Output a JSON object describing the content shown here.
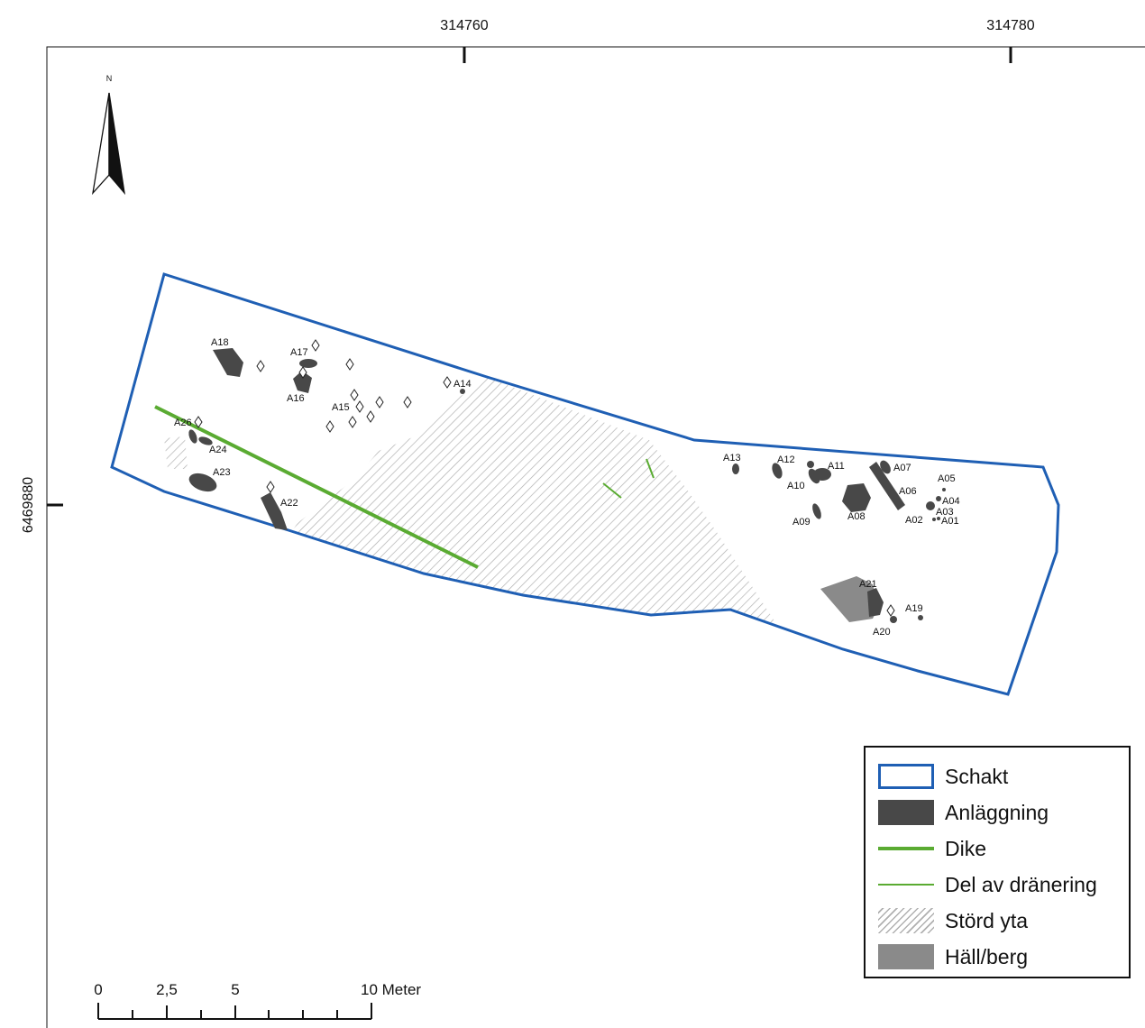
{
  "coordinates": {
    "x_ticks": [
      "314760",
      "314780"
    ],
    "y_tick": "6469880"
  },
  "north_arrow": {
    "label": "N"
  },
  "features": [
    {
      "id": "a18",
      "label": "A18"
    },
    {
      "id": "a17",
      "label": "A17"
    },
    {
      "id": "a16",
      "label": "A16"
    },
    {
      "id": "a15",
      "label": "A15"
    },
    {
      "id": "a14",
      "label": "A14"
    },
    {
      "id": "a26",
      "label": "A26"
    },
    {
      "id": "a24",
      "label": "A24"
    },
    {
      "id": "a23",
      "label": "A23"
    },
    {
      "id": "a22",
      "label": "A22"
    },
    {
      "id": "a13",
      "label": "A13"
    },
    {
      "id": "a12",
      "label": "A12"
    },
    {
      "id": "a11",
      "label": "A11"
    },
    {
      "id": "a10",
      "label": "A10"
    },
    {
      "id": "a09",
      "label": "A09"
    },
    {
      "id": "a08",
      "label": "A08"
    },
    {
      "id": "a07",
      "label": "A07"
    },
    {
      "id": "a06",
      "label": "A06"
    },
    {
      "id": "a05",
      "label": "A05"
    },
    {
      "id": "a04",
      "label": "A04"
    },
    {
      "id": "a03",
      "label": "A03"
    },
    {
      "id": "a02",
      "label": "A02"
    },
    {
      "id": "a01",
      "label": "A01"
    },
    {
      "id": "a21",
      "label": "A21"
    },
    {
      "id": "a20",
      "label": "A20"
    },
    {
      "id": "a19",
      "label": "A19"
    }
  ],
  "scale_bar": {
    "labels": [
      "0",
      "2,5",
      "5",
      "10 Meter"
    ]
  },
  "legend": {
    "items": [
      {
        "label": "Schakt",
        "swatch": "outline",
        "color": "#1f5fb4"
      },
      {
        "label": "Anläggning",
        "swatch": "fill",
        "color": "#484848"
      },
      {
        "label": "Dike",
        "swatch": "thick-line",
        "color": "#5aab32"
      },
      {
        "label": "Del av dränering",
        "swatch": "thin-line",
        "color": "#5aab32"
      },
      {
        "label": "Störd yta",
        "swatch": "hatch",
        "color": "#b0b0b0"
      },
      {
        "label": "Häll/berg",
        "swatch": "fill",
        "color": "#8a8a8a"
      }
    ]
  },
  "colors": {
    "schakt": "#1f5fb4",
    "anlaggning": "#484848",
    "dike": "#5aab32",
    "hall": "#8a8a8a",
    "hatch": "#b0b0b0"
  }
}
